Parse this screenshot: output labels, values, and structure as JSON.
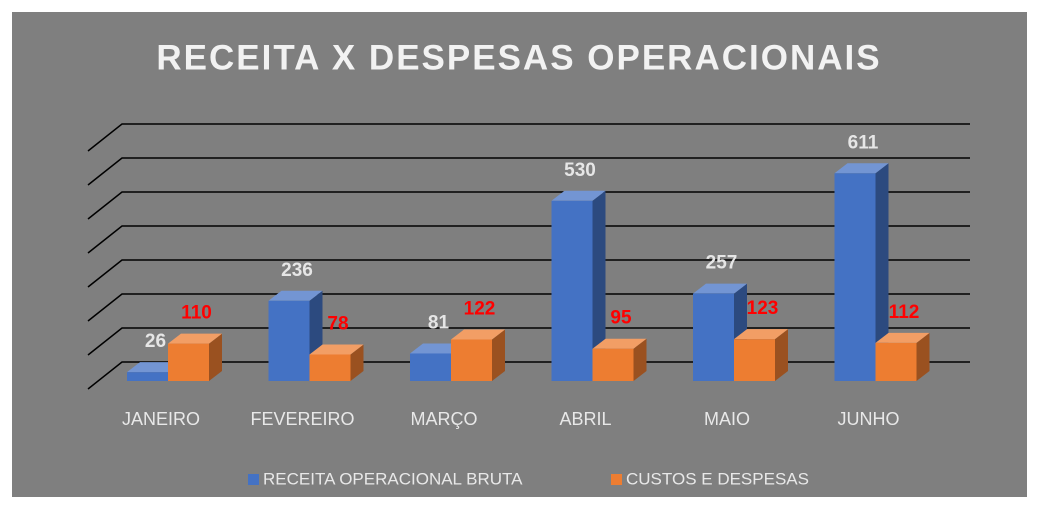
{
  "chart_data": {
    "type": "bar",
    "title": "RECEITA X DESPESAS OPERACIONAIS",
    "categories": [
      "JANEIRO",
      "FEVEREIRO",
      "MARÇO",
      "ABRIL",
      "MAIO",
      "JUNHO"
    ],
    "series": [
      {
        "name": "RECEITA OPERACIONAL BRUTA",
        "color": "#4472c4",
        "label_color": "#e6e6e6",
        "values": [
          26,
          236,
          81,
          530,
          257,
          611
        ]
      },
      {
        "name": "CUSTOS E DESPESAS",
        "color": "#ed7d31",
        "label_color": "#ff0000",
        "values": [
          110,
          78,
          122,
          95,
          123,
          112
        ]
      }
    ],
    "ylim": [
      0,
      700
    ],
    "yticks": [
      0,
      100,
      200,
      300,
      400,
      500,
      600,
      700
    ],
    "grid": true,
    "legend": "bottom"
  }
}
